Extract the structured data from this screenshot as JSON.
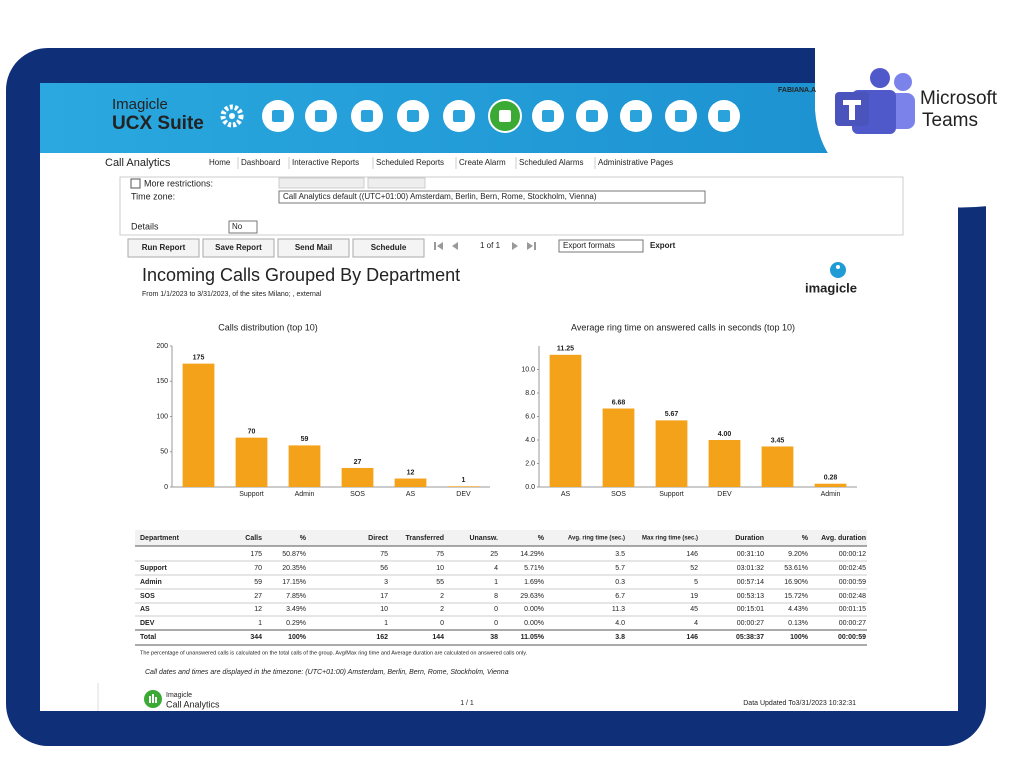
{
  "brand": {
    "line1": "Imagicle",
    "line2": "UCX Suite"
  },
  "user": "FABIANA.A",
  "teams": {
    "line1": "Microsoft",
    "line2": "Teams"
  },
  "module": "Call Analytics",
  "nav": [
    "Home",
    "Dashboard",
    "Interactive Reports",
    "Scheduled Reports",
    "Create Alarm",
    "Scheduled Alarms",
    "Administrative Pages"
  ],
  "filters": {
    "more_restrictions": "More restrictions:",
    "time_zone_label": "Time zone:",
    "time_zone_value": "Call Analytics default ((UTC+01:00) Amsterdam, Berlin, Bern, Rome, Stockholm, Vienna)",
    "details_label": "Details",
    "details_value": "No"
  },
  "buttons": [
    "Run Report",
    "Save Report",
    "Send Mail",
    "Schedule"
  ],
  "pager": "1 of 1",
  "export_select": "Export formats",
  "export": "Export",
  "report": {
    "title": "Incoming Calls Grouped By Department",
    "subtitle": "From 1/1/2023 to 3/31/2023, of the sites Milano; , external",
    "logo": "imagicle"
  },
  "chart_data": [
    {
      "type": "bar",
      "title": "Calls distribution (top 10)",
      "categories": [
        null,
        "Support",
        "Admin",
        "SOS",
        "AS",
        "DEV"
      ],
      "values": [
        175,
        70,
        59,
        27,
        12,
        1
      ],
      "color": "#f5a21b",
      "ylim": [
        0,
        200
      ],
      "yticks": [
        0,
        50,
        100,
        150,
        200
      ]
    },
    {
      "type": "bar",
      "title": "Average ring time on answered calls in seconds (top 10)",
      "categories": [
        "AS",
        "SOS",
        "Support",
        "DEV",
        null,
        "Admin"
      ],
      "values": [
        11.25,
        6.68,
        5.67,
        4.0,
        3.45,
        0.28
      ],
      "value_labels": [
        "11.25",
        "6.68",
        "5.67",
        "4.00",
        "3.45",
        "0.28"
      ],
      "color": "#f5a21b",
      "ylim": [
        0,
        12
      ],
      "yticks": [
        {
          "value": 0,
          "label": "0.0"
        },
        {
          "value": 2,
          "label": "2.0"
        },
        {
          "value": 4,
          "label": "4.0"
        },
        {
          "value": 6,
          "label": "6.0"
        },
        {
          "value": 8,
          "label": "8.0"
        },
        {
          "value": 10,
          "label": "10.0"
        }
      ]
    }
  ],
  "table": {
    "header": [
      "Department",
      "Calls",
      "%",
      "Direct",
      "Transferred",
      "Unansw.",
      "%",
      "Avg. ring time (sec.)",
      "Max ring time (sec.)",
      "Duration",
      "%",
      "Avg. duration"
    ],
    "rows": [
      [
        null,
        "175",
        "50.87%",
        "75",
        "75",
        "25",
        "14.29%",
        "3.5",
        "146",
        "00:31:10",
        "9.20%",
        "00:00:12"
      ],
      [
        "Support",
        "70",
        "20.35%",
        "56",
        "10",
        "4",
        "5.71%",
        "5.7",
        "52",
        "03:01:32",
        "53.61%",
        "00:02:45"
      ],
      [
        "Admin",
        "59",
        "17.15%",
        "3",
        "55",
        "1",
        "1.69%",
        "0.3",
        "5",
        "00:57:14",
        "16.90%",
        "00:00:59"
      ],
      [
        "SOS",
        "27",
        "7.85%",
        "17",
        "2",
        "8",
        "29.63%",
        "6.7",
        "19",
        "00:53:13",
        "15.72%",
        "00:02:48"
      ],
      [
        "AS",
        "12",
        "3.49%",
        "10",
        "2",
        "0",
        "0.00%",
        "11.3",
        "45",
        "00:15:01",
        "4.43%",
        "00:01:15"
      ],
      [
        "DEV",
        "1",
        "0.29%",
        "1",
        "0",
        "0",
        "0.00%",
        "4.0",
        "4",
        "00:00:27",
        "0.13%",
        "00:00:27"
      ]
    ],
    "total": [
      "Total",
      "344",
      "100%",
      "162",
      "144",
      "38",
      "11.05%",
      "3.8",
      "146",
      "05:38:37",
      "100%",
      "00:00:59"
    ]
  },
  "notes": [
    "The percentage of unanswered calls is calculated on the total calls of the group. Avg/Max ring time and Average duration are calculated on answered calls only.",
    "Call dates and times are displayed in the timezone: (UTC+01:00) Amsterdam, Berlin, Bern, Rome, Stockholm, Vienna"
  ],
  "footer": {
    "brand1": "Imagicle",
    "brand2": "Call Analytics",
    "page": "1 / 1",
    "updated": "Data Updated To3/31/2023 10:32:31"
  }
}
